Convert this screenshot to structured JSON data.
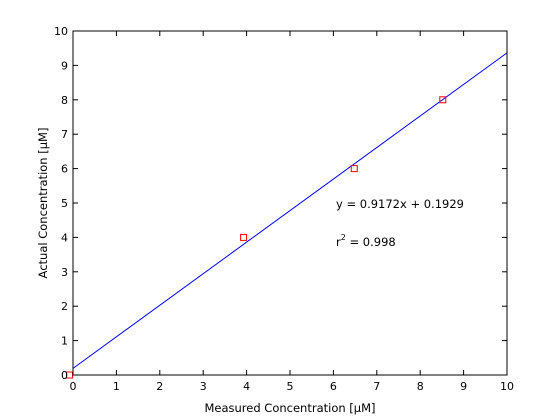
{
  "chart_data": {
    "type": "scatter",
    "title": "",
    "xlabel": "Measured Concentration [µM]",
    "ylabel": "Actual Concentration [µM]",
    "xlim": [
      0,
      10
    ],
    "ylim": [
      0,
      10
    ],
    "xticks": [
      "0",
      "1",
      "2",
      "3",
      "4",
      "5",
      "6",
      "7",
      "8",
      "9",
      "10"
    ],
    "yticks": [
      "0",
      "1",
      "2",
      "3",
      "4",
      "5",
      "6",
      "7",
      "8",
      "9",
      "10"
    ],
    "grid": false,
    "legend": "none",
    "series": [
      {
        "kind": "points",
        "marker": "square",
        "color": "#ff0000",
        "x": [
          -0.08,
          3.93,
          6.48,
          8.52
        ],
        "y": [
          0,
          4,
          6,
          8
        ]
      },
      {
        "kind": "fit-line",
        "color": "#0000ff",
        "slope": 0.9172,
        "intercept": 0.1929,
        "x_range": [
          0,
          10
        ]
      }
    ],
    "annotations": {
      "equation": "y = 0.9172x + 0.1929",
      "r2_base": "r",
      "r2_sup": "2",
      "r2_rest": " = 0.998"
    }
  }
}
